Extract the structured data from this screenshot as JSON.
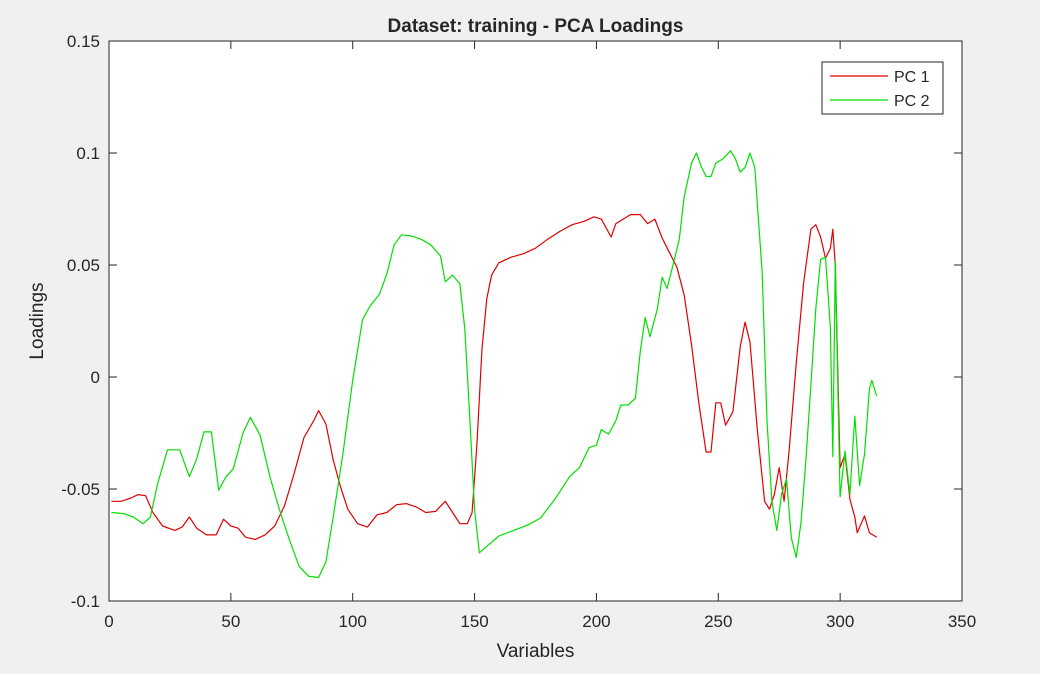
{
  "chart_data": {
    "type": "line",
    "title": "Dataset: training - PCA Loadings",
    "xlabel": "Variables",
    "ylabel": "Loadings",
    "xlim": [
      0,
      350
    ],
    "ylim": [
      -0.1,
      0.15
    ],
    "xticks": [
      0,
      50,
      100,
      150,
      200,
      250,
      300,
      350
    ],
    "xtick_labels": [
      "0",
      "50",
      "100",
      "150",
      "200",
      "250",
      "300",
      "350"
    ],
    "yticks": [
      -0.1,
      -0.05,
      0,
      0.05,
      0.1,
      0.15
    ],
    "ytick_labels": [
      "-0.1",
      "-0.05",
      "0",
      "0.05",
      "0.1",
      "0.15"
    ],
    "grid": false,
    "legend": "top-right",
    "series": [
      {
        "name": "PC 1",
        "color": "#e00000",
        "points": [
          [
            1,
            -0.0555
          ],
          [
            5,
            -0.0555
          ],
          [
            9,
            -0.054
          ],
          [
            12,
            -0.0525
          ],
          [
            15,
            -0.053
          ],
          [
            18,
            -0.0605
          ],
          [
            22,
            -0.0665
          ],
          [
            27,
            -0.0685
          ],
          [
            30,
            -0.067
          ],
          [
            33,
            -0.0625
          ],
          [
            36,
            -0.0675
          ],
          [
            40,
            -0.0705
          ],
          [
            44,
            -0.0705
          ],
          [
            47,
            -0.0635
          ],
          [
            50,
            -0.0665
          ],
          [
            53,
            -0.0675
          ],
          [
            56,
            -0.0715
          ],
          [
            60,
            -0.0725
          ],
          [
            64,
            -0.0705
          ],
          [
            68,
            -0.0665
          ],
          [
            72,
            -0.0575
          ],
          [
            76,
            -0.043
          ],
          [
            80,
            -0.027
          ],
          [
            84,
            -0.0195
          ],
          [
            86,
            -0.015
          ],
          [
            89,
            -0.021
          ],
          [
            92,
            -0.037
          ],
          [
            95,
            -0.049
          ],
          [
            98,
            -0.059
          ],
          [
            102,
            -0.0655
          ],
          [
            106,
            -0.067
          ],
          [
            110,
            -0.0615
          ],
          [
            114,
            -0.0605
          ],
          [
            118,
            -0.057
          ],
          [
            122,
            -0.0565
          ],
          [
            126,
            -0.058
          ],
          [
            130,
            -0.0605
          ],
          [
            134,
            -0.06
          ],
          [
            138,
            -0.0555
          ],
          [
            141,
            -0.0605
          ],
          [
            144,
            -0.0655
          ],
          [
            147,
            -0.0655
          ],
          [
            149,
            -0.0605
          ],
          [
            151,
            -0.0295
          ],
          [
            153,
            0.012
          ],
          [
            155,
            0.035
          ],
          [
            157,
            0.0455
          ],
          [
            160,
            0.051
          ],
          [
            165,
            0.0535
          ],
          [
            170,
            0.055
          ],
          [
            175,
            0.0575
          ],
          [
            180,
            0.0615
          ],
          [
            185,
            0.065
          ],
          [
            190,
            0.068
          ],
          [
            195,
            0.0695
          ],
          [
            199,
            0.0715
          ],
          [
            202,
            0.0705
          ],
          [
            206,
            0.0625
          ],
          [
            208,
            0.0685
          ],
          [
            211,
            0.0705
          ],
          [
            214,
            0.0725
          ],
          [
            218,
            0.0725
          ],
          [
            221,
            0.0685
          ],
          [
            224,
            0.0705
          ],
          [
            227,
            0.062
          ],
          [
            230,
            0.0555
          ],
          [
            233,
            0.049
          ],
          [
            236,
            0.0365
          ],
          [
            239,
            0.0145
          ],
          [
            242,
            -0.0115
          ],
          [
            245,
            -0.0335
          ],
          [
            247,
            -0.0335
          ],
          [
            249,
            -0.0115
          ],
          [
            251,
            -0.0115
          ],
          [
            253,
            -0.0215
          ],
          [
            256,
            -0.0155
          ],
          [
            259,
            0.0135
          ],
          [
            261,
            0.0245
          ],
          [
            263,
            0.0155
          ],
          [
            266,
            -0.0235
          ],
          [
            269,
            -0.0555
          ],
          [
            271,
            -0.059
          ],
          [
            273,
            -0.0525
          ],
          [
            275,
            -0.0405
          ],
          [
            277,
            -0.0555
          ],
          [
            279,
            -0.0335
          ],
          [
            282,
            0.0065
          ],
          [
            285,
            0.042
          ],
          [
            288,
            0.066
          ],
          [
            290,
            0.068
          ],
          [
            292,
            0.0625
          ],
          [
            294,
            0.053
          ],
          [
            296,
            0.0575
          ],
          [
            297,
            0.066
          ],
          [
            298,
            0.05
          ],
          [
            300,
            -0.0405
          ],
          [
            302,
            -0.0345
          ],
          [
            304,
            -0.0545
          ],
          [
            306,
            -0.0625
          ],
          [
            307,
            -0.0695
          ],
          [
            309,
            -0.0645
          ],
          [
            310,
            -0.062
          ],
          [
            312,
            -0.0695
          ],
          [
            315,
            -0.0715
          ]
        ]
      },
      {
        "name": "PC 2",
        "color": "#00e000",
        "points": [
          [
            1,
            -0.0605
          ],
          [
            6,
            -0.061
          ],
          [
            10,
            -0.0625
          ],
          [
            14,
            -0.0655
          ],
          [
            17,
            -0.0625
          ],
          [
            20,
            -0.0475
          ],
          [
            24,
            -0.0325
          ],
          [
            29,
            -0.0325
          ],
          [
            33,
            -0.0445
          ],
          [
            36,
            -0.0365
          ],
          [
            39,
            -0.0245
          ],
          [
            42,
            -0.0245
          ],
          [
            45,
            -0.0505
          ],
          [
            48,
            -0.0445
          ],
          [
            51,
            -0.041
          ],
          [
            55,
            -0.025
          ],
          [
            58,
            -0.018
          ],
          [
            62,
            -0.026
          ],
          [
            66,
            -0.0445
          ],
          [
            70,
            -0.0595
          ],
          [
            74,
            -0.0725
          ],
          [
            78,
            -0.0845
          ],
          [
            82,
            -0.089
          ],
          [
            86,
            -0.0895
          ],
          [
            89,
            -0.0825
          ],
          [
            92,
            -0.0625
          ],
          [
            96,
            -0.034
          ],
          [
            100,
            -0.0015
          ],
          [
            104,
            0.0255
          ],
          [
            107,
            0.0315
          ],
          [
            111,
            0.037
          ],
          [
            114,
            0.046
          ],
          [
            117,
            0.059
          ],
          [
            120,
            0.0635
          ],
          [
            124,
            0.063
          ],
          [
            128,
            0.0615
          ],
          [
            132,
            0.059
          ],
          [
            136,
            0.054
          ],
          [
            138,
            0.0425
          ],
          [
            141,
            0.0455
          ],
          [
            144,
            0.0415
          ],
          [
            146,
            0.0215
          ],
          [
            148,
            -0.0175
          ],
          [
            150,
            -0.0595
          ],
          [
            152,
            -0.0785
          ],
          [
            154,
            -0.0765
          ],
          [
            160,
            -0.071
          ],
          [
            166,
            -0.0685
          ],
          [
            172,
            -0.066
          ],
          [
            177,
            -0.063
          ],
          [
            183,
            -0.0545
          ],
          [
            189,
            -0.0445
          ],
          [
            193,
            -0.0405
          ],
          [
            197,
            -0.0315
          ],
          [
            200,
            -0.0305
          ],
          [
            202,
            -0.0235
          ],
          [
            205,
            -0.0255
          ],
          [
            208,
            -0.0195
          ],
          [
            210,
            -0.0125
          ],
          [
            213,
            -0.0125
          ],
          [
            216,
            -0.0095
          ],
          [
            218,
            0.0115
          ],
          [
            220,
            0.0265
          ],
          [
            222,
            0.018
          ],
          [
            225,
            0.0305
          ],
          [
            227,
            0.0445
          ],
          [
            229,
            0.0395
          ],
          [
            232,
            0.0525
          ],
          [
            234,
            0.0615
          ],
          [
            236,
            0.0805
          ],
          [
            239,
            0.0955
          ],
          [
            241,
            0.1
          ],
          [
            243,
            0.094
          ],
          [
            245,
            0.0895
          ],
          [
            247,
            0.0895
          ],
          [
            249,
            0.0955
          ],
          [
            252,
            0.0975
          ],
          [
            255,
            0.101
          ],
          [
            257,
            0.0975
          ],
          [
            259,
            0.0915
          ],
          [
            261,
            0.0935
          ],
          [
            263,
            0.1
          ],
          [
            265,
            0.0935
          ],
          [
            268,
            0.0465
          ],
          [
            270,
            -0.0195
          ],
          [
            272,
            -0.0555
          ],
          [
            274,
            -0.0685
          ],
          [
            276,
            -0.052
          ],
          [
            278,
            -0.0455
          ],
          [
            280,
            -0.072
          ],
          [
            282,
            -0.0805
          ],
          [
            284,
            -0.0645
          ],
          [
            286,
            -0.0365
          ],
          [
            288,
            -0.0035
          ],
          [
            290,
            0.0305
          ],
          [
            292,
            0.0525
          ],
          [
            294,
            0.0535
          ],
          [
            296,
            0.022
          ],
          [
            297,
            -0.0355
          ],
          [
            298,
            0.0515
          ],
          [
            300,
            -0.0535
          ],
          [
            302,
            -0.033
          ],
          [
            304,
            -0.0525
          ],
          [
            306,
            -0.0175
          ],
          [
            308,
            -0.0485
          ],
          [
            310,
            -0.0345
          ],
          [
            312,
            -0.0055
          ],
          [
            313,
            -0.0015
          ],
          [
            315,
            -0.0085
          ]
        ]
      }
    ]
  }
}
